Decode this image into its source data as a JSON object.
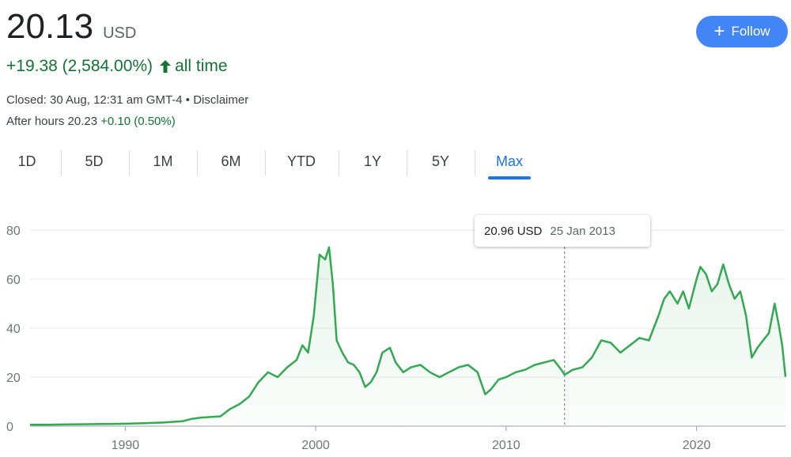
{
  "header": {
    "price": "20.13",
    "currency": "USD",
    "change": "+19.38 (2,584.00%)",
    "change_period": "all time",
    "closed_text": "Closed: 30 Aug, 12:31 am GMT-4 • Disclaimer",
    "after_hours_label": "After hours 20.23",
    "after_hours_change": "+0.10 (0.50%)"
  },
  "follow_button": {
    "label": "Follow"
  },
  "tabs": [
    {
      "label": "1D"
    },
    {
      "label": "5D"
    },
    {
      "label": "1M"
    },
    {
      "label": "6M"
    },
    {
      "label": "YTD"
    },
    {
      "label": "1Y"
    },
    {
      "label": "5Y"
    },
    {
      "label": "Max",
      "active": true
    }
  ],
  "tooltip": {
    "price": "20.96 USD",
    "date": "25 Jan 2013"
  },
  "colors": {
    "line": "#34a853",
    "positive": "#137333",
    "accent": "#1a73e8",
    "button": "#4285f4"
  },
  "chart_data": {
    "type": "area",
    "xlim": [
      1985.0,
      2024.67
    ],
    "ylim": [
      0,
      80
    ],
    "yticks": [
      0,
      20,
      40,
      60,
      80
    ],
    "xticks": [
      1990,
      2000,
      2010,
      2020
    ],
    "grid": true,
    "series": [
      {
        "x": [
          1985.0,
          1986.0,
          1987.0,
          1988.0,
          1989.0,
          1990.0,
          1991.0,
          1992.0,
          1993.0,
          1993.5,
          1994.0,
          1995.0,
          1995.5,
          1996.0,
          1996.5,
          1997.0,
          1997.5,
          1998.0,
          1998.5,
          1999.0,
          1999.3,
          1999.6,
          1999.9,
          2000.2,
          2000.5,
          2000.7,
          2000.9,
          2001.1,
          2001.4,
          2001.7,
          2002.0,
          2002.3,
          2002.6,
          2002.9,
          2003.2,
          2003.5,
          2003.9,
          2004.2,
          2004.6,
          2005.0,
          2005.5,
          2006.0,
          2006.5,
          2007.0,
          2007.5,
          2008.0,
          2008.5,
          2008.9,
          2009.2,
          2009.6,
          2010.0,
          2010.5,
          2011.0,
          2011.5,
          2012.0,
          2012.5,
          2012.9,
          2013.07,
          2013.5,
          2014.0,
          2014.5,
          2015.0,
          2015.5,
          2016.0,
          2016.5,
          2017.0,
          2017.5,
          2018.0,
          2018.3,
          2018.6,
          2019.0,
          2019.3,
          2019.6,
          2020.0,
          2020.2,
          2020.5,
          2020.8,
          2021.1,
          2021.4,
          2021.7,
          2022.0,
          2022.3,
          2022.6,
          2022.9,
          2023.2,
          2023.5,
          2023.8,
          2024.1,
          2024.3,
          2024.5,
          2024.67
        ],
        "y": [
          0.6,
          0.6,
          0.7,
          0.8,
          0.9,
          1.0,
          1.2,
          1.5,
          2.0,
          3.0,
          3.5,
          4.0,
          7.0,
          9.0,
          12.0,
          18.0,
          22.0,
          20.0,
          24.0,
          27.0,
          33.0,
          30.0,
          45.0,
          70.0,
          68.0,
          73.0,
          58.0,
          35.0,
          30.0,
          26.0,
          25.0,
          22.0,
          16.0,
          18.0,
          22.0,
          30.0,
          32.0,
          26.0,
          22.0,
          24.0,
          25.0,
          22.0,
          20.0,
          22.0,
          24.0,
          25.0,
          22.0,
          13.0,
          15.0,
          19.0,
          20.0,
          22.0,
          23.0,
          25.0,
          26.0,
          27.0,
          23.0,
          20.96,
          23.0,
          24.0,
          28.0,
          35.0,
          34.0,
          30.0,
          33.0,
          36.0,
          35.0,
          45.0,
          52.0,
          55.0,
          50.0,
          55.0,
          48.0,
          60.0,
          65.0,
          62.0,
          55.0,
          58.0,
          66.0,
          58.0,
          52.0,
          55.0,
          45.0,
          28.0,
          32.0,
          35.0,
          38.0,
          50.0,
          42.0,
          33.0,
          20.13
        ]
      }
    ]
  }
}
